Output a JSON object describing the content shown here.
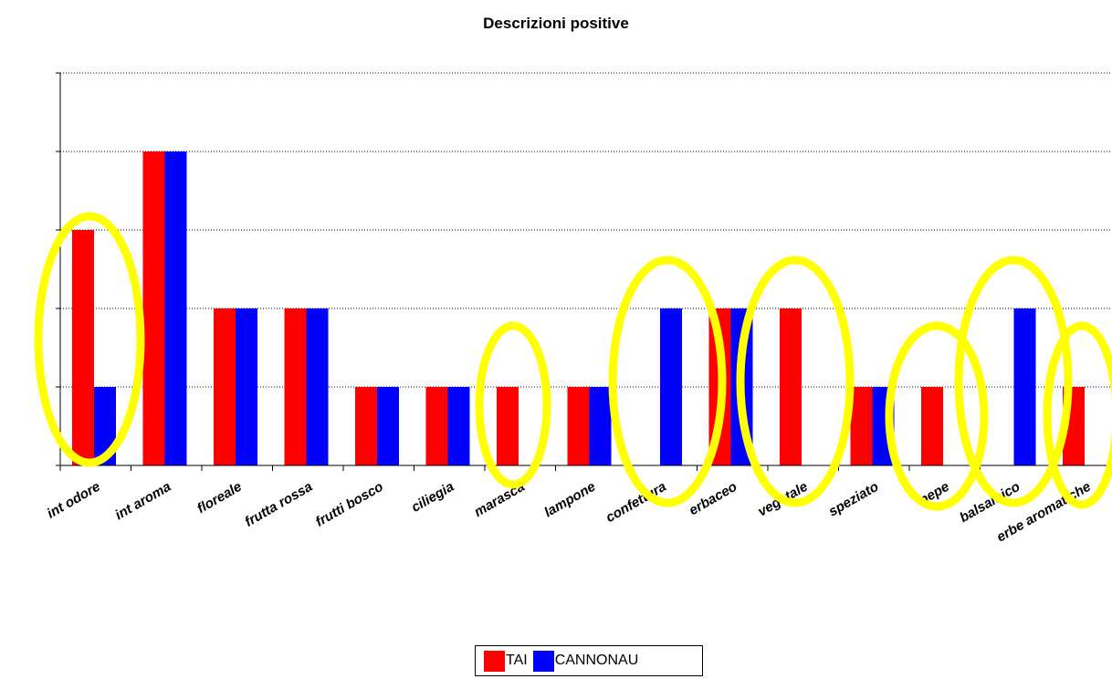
{
  "chart_data": {
    "type": "bar",
    "title": "Descrizioni positive",
    "categories": [
      "int odore",
      "int aroma",
      "floreale",
      "frutta rossa",
      "frutti bosco",
      "ciliegia",
      "marasca",
      "lampone",
      "confettura",
      "erbaceo",
      "vegetale",
      "speziato",
      "pepe",
      "balsamico",
      "erbe aromatiche"
    ],
    "series": [
      {
        "name": "TAI",
        "color": "#ff0000",
        "values": [
          3,
          4,
          2,
          2,
          1,
          1,
          1,
          1,
          0,
          2,
          2,
          1,
          1,
          0,
          1
        ]
      },
      {
        "name": "CANNONAU",
        "color": "#0000ff",
        "values": [
          1,
          4,
          2,
          2,
          1,
          1,
          0,
          1,
          2,
          2,
          0,
          1,
          0,
          2,
          0
        ]
      }
    ],
    "ylim": [
      0,
      5
    ],
    "grid": true,
    "legend_position": "bottom",
    "annotations": {
      "type": "ellipse-highlights",
      "color": "#ffff00",
      "highlighted_categories": [
        "int odore",
        "marasca",
        "confettura",
        "vegetale",
        "pepe",
        "balsamico",
        "erbe aromatiche"
      ]
    }
  }
}
